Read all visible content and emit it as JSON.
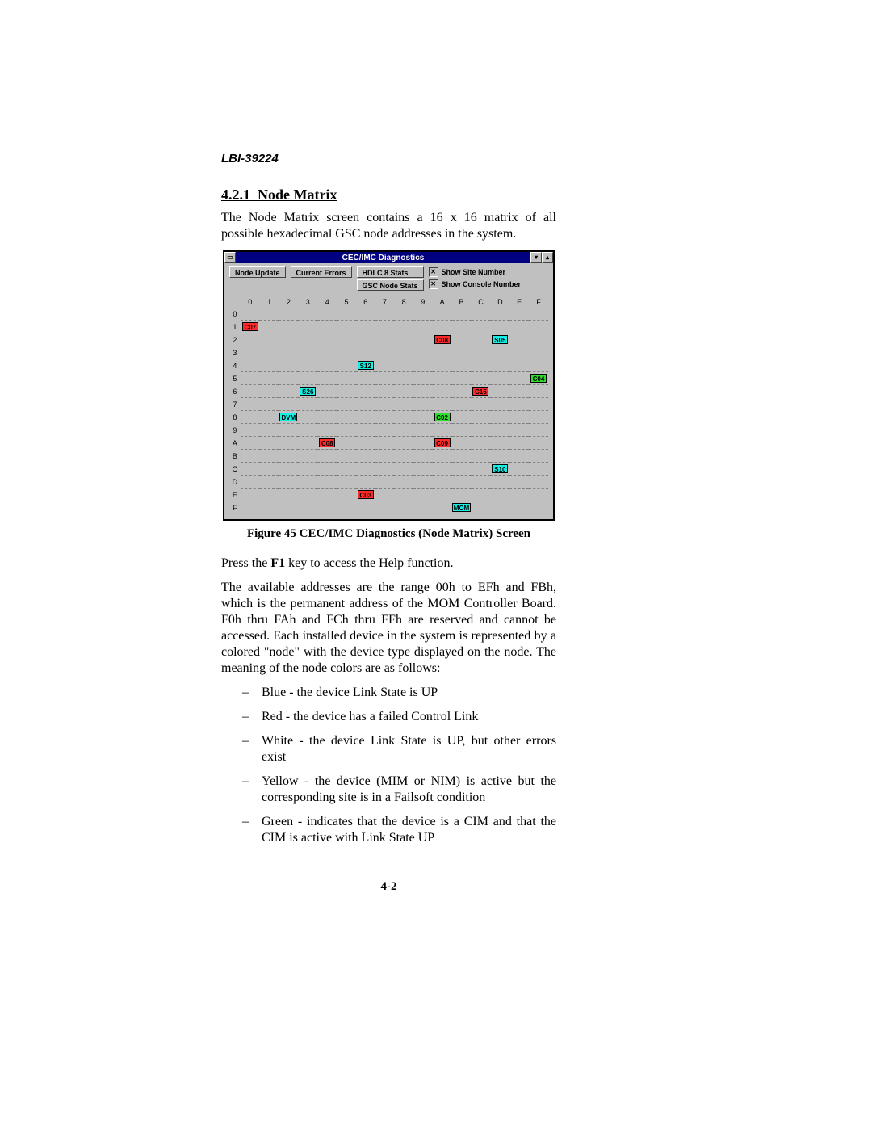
{
  "header": "LBI-39224",
  "section_num": "4.2.1",
  "section_title": "Node Matrix",
  "intro": "The Node Matrix screen contains a 16 x 16 matrix of all possible hexadecimal GSC node addresses in the system.",
  "figcap": "Figure 45  CEC/IMC Diagnostics (Node Matrix) Screen",
  "press": "Press the F1 key to access the Help function.",
  "f1": "F1",
  "avail": "The available addresses are the range 00h to EFh and FBh, which is the permanent address of the MOM Controller Board.  F0h thru FAh and FCh thru FFh are reserved and cannot be accessed.  Each installed device in the system is represented by a colored \"node\" with the device type displayed on the node.  The meaning of the node colors are as follows:",
  "bullets": [
    "Blue - the device Link State is UP",
    "Red - the device has a failed Control Link",
    "White - the device Link State is UP, but other errors exist",
    "Yellow - the device (MIM or NIM) is active but the corresponding site is in a Failsoft condition",
    "Green - indicates that the device is a CIM and that the CIM is active with Link State UP"
  ],
  "pagenum": "4-2",
  "win": {
    "title": "CEC/IMC Diagnostics",
    "btn_node_update": "Node Update",
    "btn_current_errors": "Current Errors",
    "btn_hdlc": "HDLC 8 Stats",
    "btn_gsc": "GSC Node Stats",
    "chk_site": "Show Site Number",
    "chk_console": "Show Console Number",
    "cols": [
      "0",
      "1",
      "2",
      "3",
      "4",
      "5",
      "6",
      "7",
      "8",
      "9",
      "A",
      "B",
      "C",
      "D",
      "E",
      "F"
    ],
    "rows": [
      "0",
      "1",
      "2",
      "3",
      "4",
      "5",
      "6",
      "7",
      "8",
      "9",
      "A",
      "B",
      "C",
      "D",
      "E",
      "F"
    ],
    "nodes": [
      {
        "r": 1,
        "c": 0,
        "label": "C07",
        "color": "red"
      },
      {
        "r": 2,
        "c": 10,
        "label": "C08",
        "color": "red"
      },
      {
        "r": 2,
        "c": 13,
        "label": "S05",
        "color": "cyan"
      },
      {
        "r": 4,
        "c": 6,
        "label": "S12",
        "color": "cyan"
      },
      {
        "r": 5,
        "c": 15,
        "label": "C04",
        "color": "green"
      },
      {
        "r": 6,
        "c": 3,
        "label": "S26",
        "color": "cyan"
      },
      {
        "r": 6,
        "c": 12,
        "label": "C15",
        "color": "red"
      },
      {
        "r": 8,
        "c": 2,
        "label": "DVM",
        "color": "cyan"
      },
      {
        "r": 8,
        "c": 10,
        "label": "C02",
        "color": "green"
      },
      {
        "r": 10,
        "c": 4,
        "label": "C08",
        "color": "red"
      },
      {
        "r": 10,
        "c": 10,
        "label": "C09",
        "color": "red"
      },
      {
        "r": 12,
        "c": 13,
        "label": "S10",
        "color": "cyan"
      },
      {
        "r": 14,
        "c": 6,
        "label": "C03",
        "color": "red"
      },
      {
        "r": 15,
        "c": 11,
        "label": "MOM",
        "color": "cyan"
      }
    ]
  }
}
